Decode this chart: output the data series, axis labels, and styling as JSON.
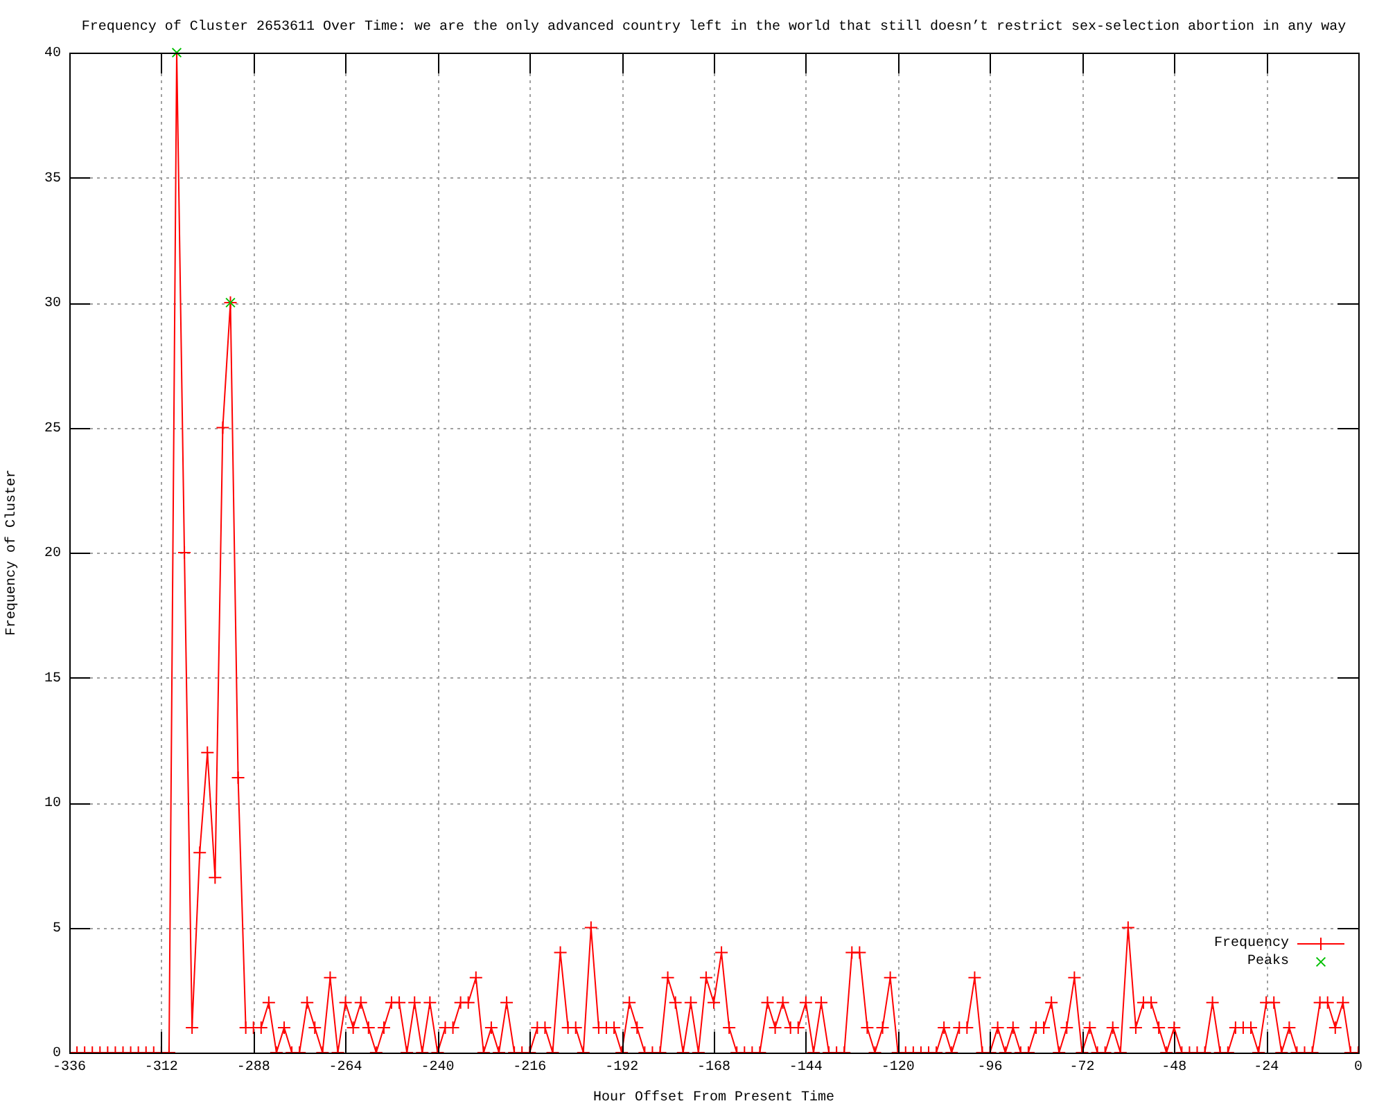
{
  "chart_data": {
    "type": "line",
    "title": "Frequency of Cluster 2653611 Over Time: we are the only advanced country left in the world that still doesn’t restrict sex-selection abortion in any way",
    "xlabel": "Hour Offset From Present Time",
    "ylabel": "Frequency of Cluster",
    "x": [
      -336,
      -334,
      -332,
      -330,
      -328,
      -326,
      -324,
      -322,
      -320,
      -318,
      -316,
      -314,
      -312,
      -310,
      -308,
      -306,
      -304,
      -302,
      -300,
      -298,
      -296,
      -294,
      -292,
      -290,
      -288,
      -286,
      -284,
      -282,
      -280,
      -278,
      -276,
      -274,
      -272,
      -270,
      -268,
      -266,
      -264,
      -262,
      -260,
      -258,
      -256,
      -254,
      -252,
      -250,
      -248,
      -246,
      -244,
      -242,
      -240,
      -238,
      -236,
      -234,
      -232,
      -230,
      -228,
      -226,
      -224,
      -222,
      -220,
      -218,
      -216,
      -214,
      -212,
      -210,
      -208,
      -206,
      -204,
      -202,
      -200,
      -198,
      -196,
      -194,
      -192,
      -190,
      -188,
      -186,
      -184,
      -182,
      -180,
      -178,
      -176,
      -174,
      -172,
      -170,
      -168,
      -166,
      -164,
      -162,
      -160,
      -158,
      -156,
      -154,
      -152,
      -150,
      -148,
      -146,
      -144,
      -142,
      -140,
      -138,
      -136,
      -134,
      -132,
      -130,
      -128,
      -126,
      -124,
      -122,
      -120,
      -118,
      -116,
      -114,
      -112,
      -110,
      -108,
      -106,
      -104,
      -102,
      -100,
      -98,
      -96,
      -94,
      -92,
      -90,
      -88,
      -86,
      -84,
      -82,
      -80,
      -78,
      -76,
      -74,
      -72,
      -70,
      -68,
      -66,
      -64,
      -62,
      -60,
      -58,
      -56,
      -54,
      -52,
      -50,
      -48,
      -46,
      -44,
      -42,
      -40,
      -38,
      -36,
      -34,
      -32,
      -30,
      -28,
      -26,
      -24,
      -22,
      -20,
      -18,
      -16,
      -14,
      -12,
      -10,
      -8,
      -6,
      -4,
      -2,
      0
    ],
    "series": [
      {
        "name": "Frequency",
        "color": "#ff0000",
        "values": [
          0,
          0,
          0,
          0,
          0,
          0,
          0,
          0,
          0,
          0,
          0,
          0,
          0,
          0,
          40,
          20,
          1,
          8,
          12,
          7,
          25,
          30,
          11,
          1,
          1,
          1,
          2,
          0,
          1,
          0,
          0,
          2,
          1,
          0,
          3,
          0,
          2,
          1,
          2,
          1,
          0,
          1,
          2,
          2,
          0,
          2,
          0,
          2,
          0,
          1,
          1,
          2,
          2,
          3,
          0,
          1,
          0,
          2,
          0,
          0,
          0,
          1,
          1,
          0,
          4,
          1,
          1,
          0,
          5,
          1,
          1,
          1,
          0,
          2,
          1,
          0,
          0,
          0,
          3,
          2,
          0,
          2,
          0,
          3,
          2,
          4,
          1,
          0,
          0,
          0,
          0,
          2,
          1,
          2,
          1,
          1,
          2,
          0,
          2,
          0,
          0,
          0,
          4,
          4,
          1,
          0,
          1,
          3,
          0,
          0,
          0,
          0,
          0,
          0,
          1,
          0,
          1,
          1,
          3,
          0,
          0,
          1,
          0,
          1,
          0,
          0,
          1,
          1,
          2,
          0,
          1,
          3,
          0,
          1,
          0,
          0,
          1,
          0,
          5,
          1,
          2,
          2,
          1,
          0,
          1,
          0,
          0,
          0,
          0,
          2,
          0,
          0,
          1,
          1,
          1,
          0,
          2,
          2,
          0,
          1,
          0,
          0,
          0,
          2,
          2,
          1,
          2,
          0,
          0
        ]
      },
      {
        "name": "Peaks",
        "type": "scatter",
        "color": "#00c000",
        "x": [
          -308,
          -294
        ],
        "values": [
          40,
          30
        ]
      }
    ],
    "xlim": [
      -336,
      0
    ],
    "xticks": [
      -336,
      -312,
      -288,
      -264,
      -240,
      -216,
      -192,
      -168,
      -144,
      -120,
      -96,
      -72,
      -48,
      -24,
      0
    ],
    "ylim": [
      0,
      40
    ],
    "yticks": [
      0,
      5,
      10,
      15,
      20,
      25,
      30,
      35,
      40
    ],
    "grid": true,
    "legend": "bottom right",
    "marker": "cross"
  }
}
